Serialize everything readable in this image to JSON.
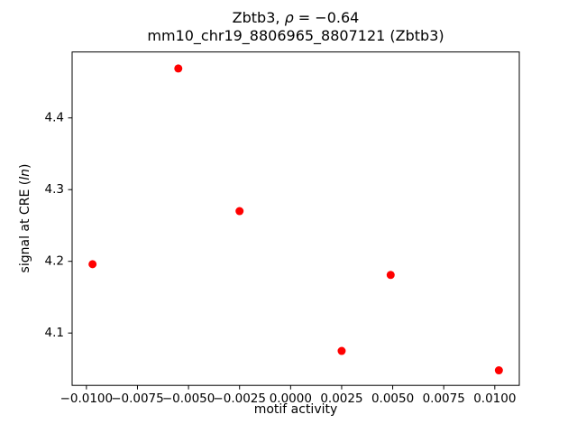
{
  "chart_data": {
    "type": "scatter",
    "title": "Zbtb3, ρ = −0.64",
    "title_parts": {
      "prefix": "Zbtb3, ",
      "rho": "ρ",
      "suffix": " = −0.64"
    },
    "subtitle": "mm10_chr19_8806965_8807121 (Zbtb3)",
    "xlabel": "motif activity",
    "ylabel": "signal at CRE (ln)",
    "ylabel_parts": {
      "prefix": "signal at CRE (",
      "italic": "ln",
      "suffix": ")"
    },
    "marker_color": "#ff0000",
    "axis_color": "#000000",
    "grid": false,
    "legend": null,
    "points": [
      {
        "x": -0.0097,
        "y": 4.196
      },
      {
        "x": -0.0055,
        "y": 4.469
      },
      {
        "x": -0.0025,
        "y": 4.27
      },
      {
        "x": 0.0025,
        "y": 4.075
      },
      {
        "x": 0.0049,
        "y": 4.181
      },
      {
        "x": 0.0102,
        "y": 4.048
      }
    ],
    "xlim": [
      -0.0107,
      0.0112
    ],
    "ylim": [
      4.027,
      4.492
    ],
    "xticks": {
      "values": [
        -0.01,
        -0.0075,
        -0.005,
        -0.0025,
        0.0,
        0.0025,
        0.005,
        0.0075,
        0.01
      ],
      "labels": [
        "−0.0100",
        "−0.0075",
        "−0.0050",
        "−0.0025",
        "0.0000",
        "0.0025",
        "0.0050",
        "0.0075",
        "0.0100"
      ]
    },
    "yticks": {
      "values": [
        4.1,
        4.2,
        4.3,
        4.4
      ],
      "labels": [
        "4.1",
        "4.2",
        "4.3",
        "4.4"
      ]
    }
  }
}
